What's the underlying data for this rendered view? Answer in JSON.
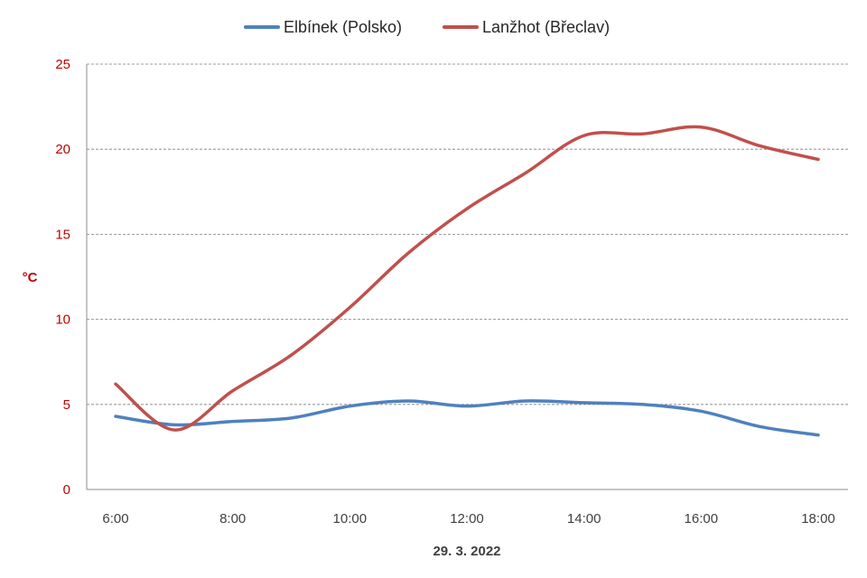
{
  "chart_data": {
    "type": "line",
    "x": [
      "6:00",
      "7:00",
      "8:00",
      "9:00",
      "10:00",
      "11:00",
      "12:00",
      "13:00",
      "14:00",
      "15:00",
      "16:00",
      "17:00",
      "18:00"
    ],
    "x_tick_labels": [
      "6:00",
      "8:00",
      "10:00",
      "12:00",
      "14:00",
      "16:00",
      "18:00"
    ],
    "series": [
      {
        "name": "Elbínek (Polsko)",
        "color": "#4f81bd",
        "values": [
          4.3,
          3.8,
          4.0,
          4.2,
          4.9,
          5.2,
          4.9,
          5.2,
          5.1,
          5.0,
          4.6,
          3.7,
          3.2
        ]
      },
      {
        "name": "Lanžhot (Břeclav)",
        "color": "#c0504d",
        "values": [
          6.2,
          3.5,
          5.8,
          7.9,
          10.7,
          13.9,
          16.5,
          18.6,
          20.8,
          20.9,
          21.3,
          20.2,
          19.4
        ]
      }
    ],
    "title": "",
    "xlabel": "29. 3. 2022",
    "ylabel": "°C",
    "ylim": [
      0,
      25
    ],
    "y_ticks": [
      0,
      5,
      10,
      15,
      20,
      25
    ],
    "grid": true,
    "legend_position": "top-center",
    "axis_label_color": "#c00000"
  }
}
